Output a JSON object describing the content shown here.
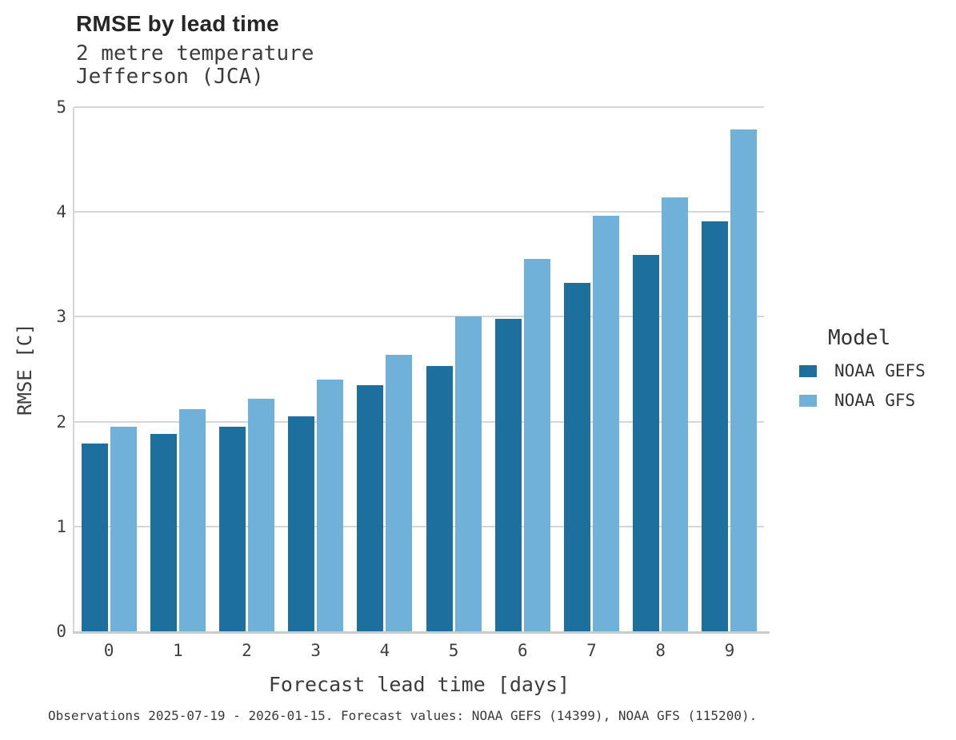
{
  "header": {
    "title": "RMSE by lead time",
    "subtitle_line1": "2 metre temperature",
    "subtitle_line2": "Jefferson (JCA)"
  },
  "legend": {
    "title": "Model",
    "entries": [
      {
        "label": "NOAA GEFS",
        "color": "#1d6f9e"
      },
      {
        "label": "NOAA GFS",
        "color": "#6fb1d8"
      }
    ],
    "position": "right"
  },
  "footer": {
    "caption": "Observations 2025-07-19 - 2026-01-15. Forecast values: NOAA GEFS (14399), NOAA GFS (115200)."
  },
  "chart_data": {
    "type": "bar",
    "title": "RMSE by lead time",
    "subtitle": [
      "2 metre temperature",
      "Jefferson (JCA)"
    ],
    "xlabel": "Forecast lead time [days]",
    "ylabel": "RMSE [C]",
    "categories": [
      0,
      1,
      2,
      3,
      4,
      5,
      6,
      7,
      8,
      9
    ],
    "series": [
      {
        "name": "NOAA GEFS",
        "color": "#1d6f9e",
        "values": [
          1.79,
          1.88,
          1.95,
          2.05,
          2.35,
          2.53,
          2.98,
          3.32,
          3.59,
          3.91
        ]
      },
      {
        "name": "NOAA GFS",
        "color": "#6fb1d8",
        "values": [
          1.95,
          2.12,
          2.22,
          2.4,
          2.64,
          3.0,
          3.55,
          3.96,
          4.14,
          4.79
        ]
      }
    ],
    "ylim": [
      0,
      5
    ],
    "yticks": [
      0,
      1,
      2,
      3,
      4,
      5
    ],
    "grid": true,
    "gridline_color": "#d6d6d6",
    "legend_position": "right"
  }
}
